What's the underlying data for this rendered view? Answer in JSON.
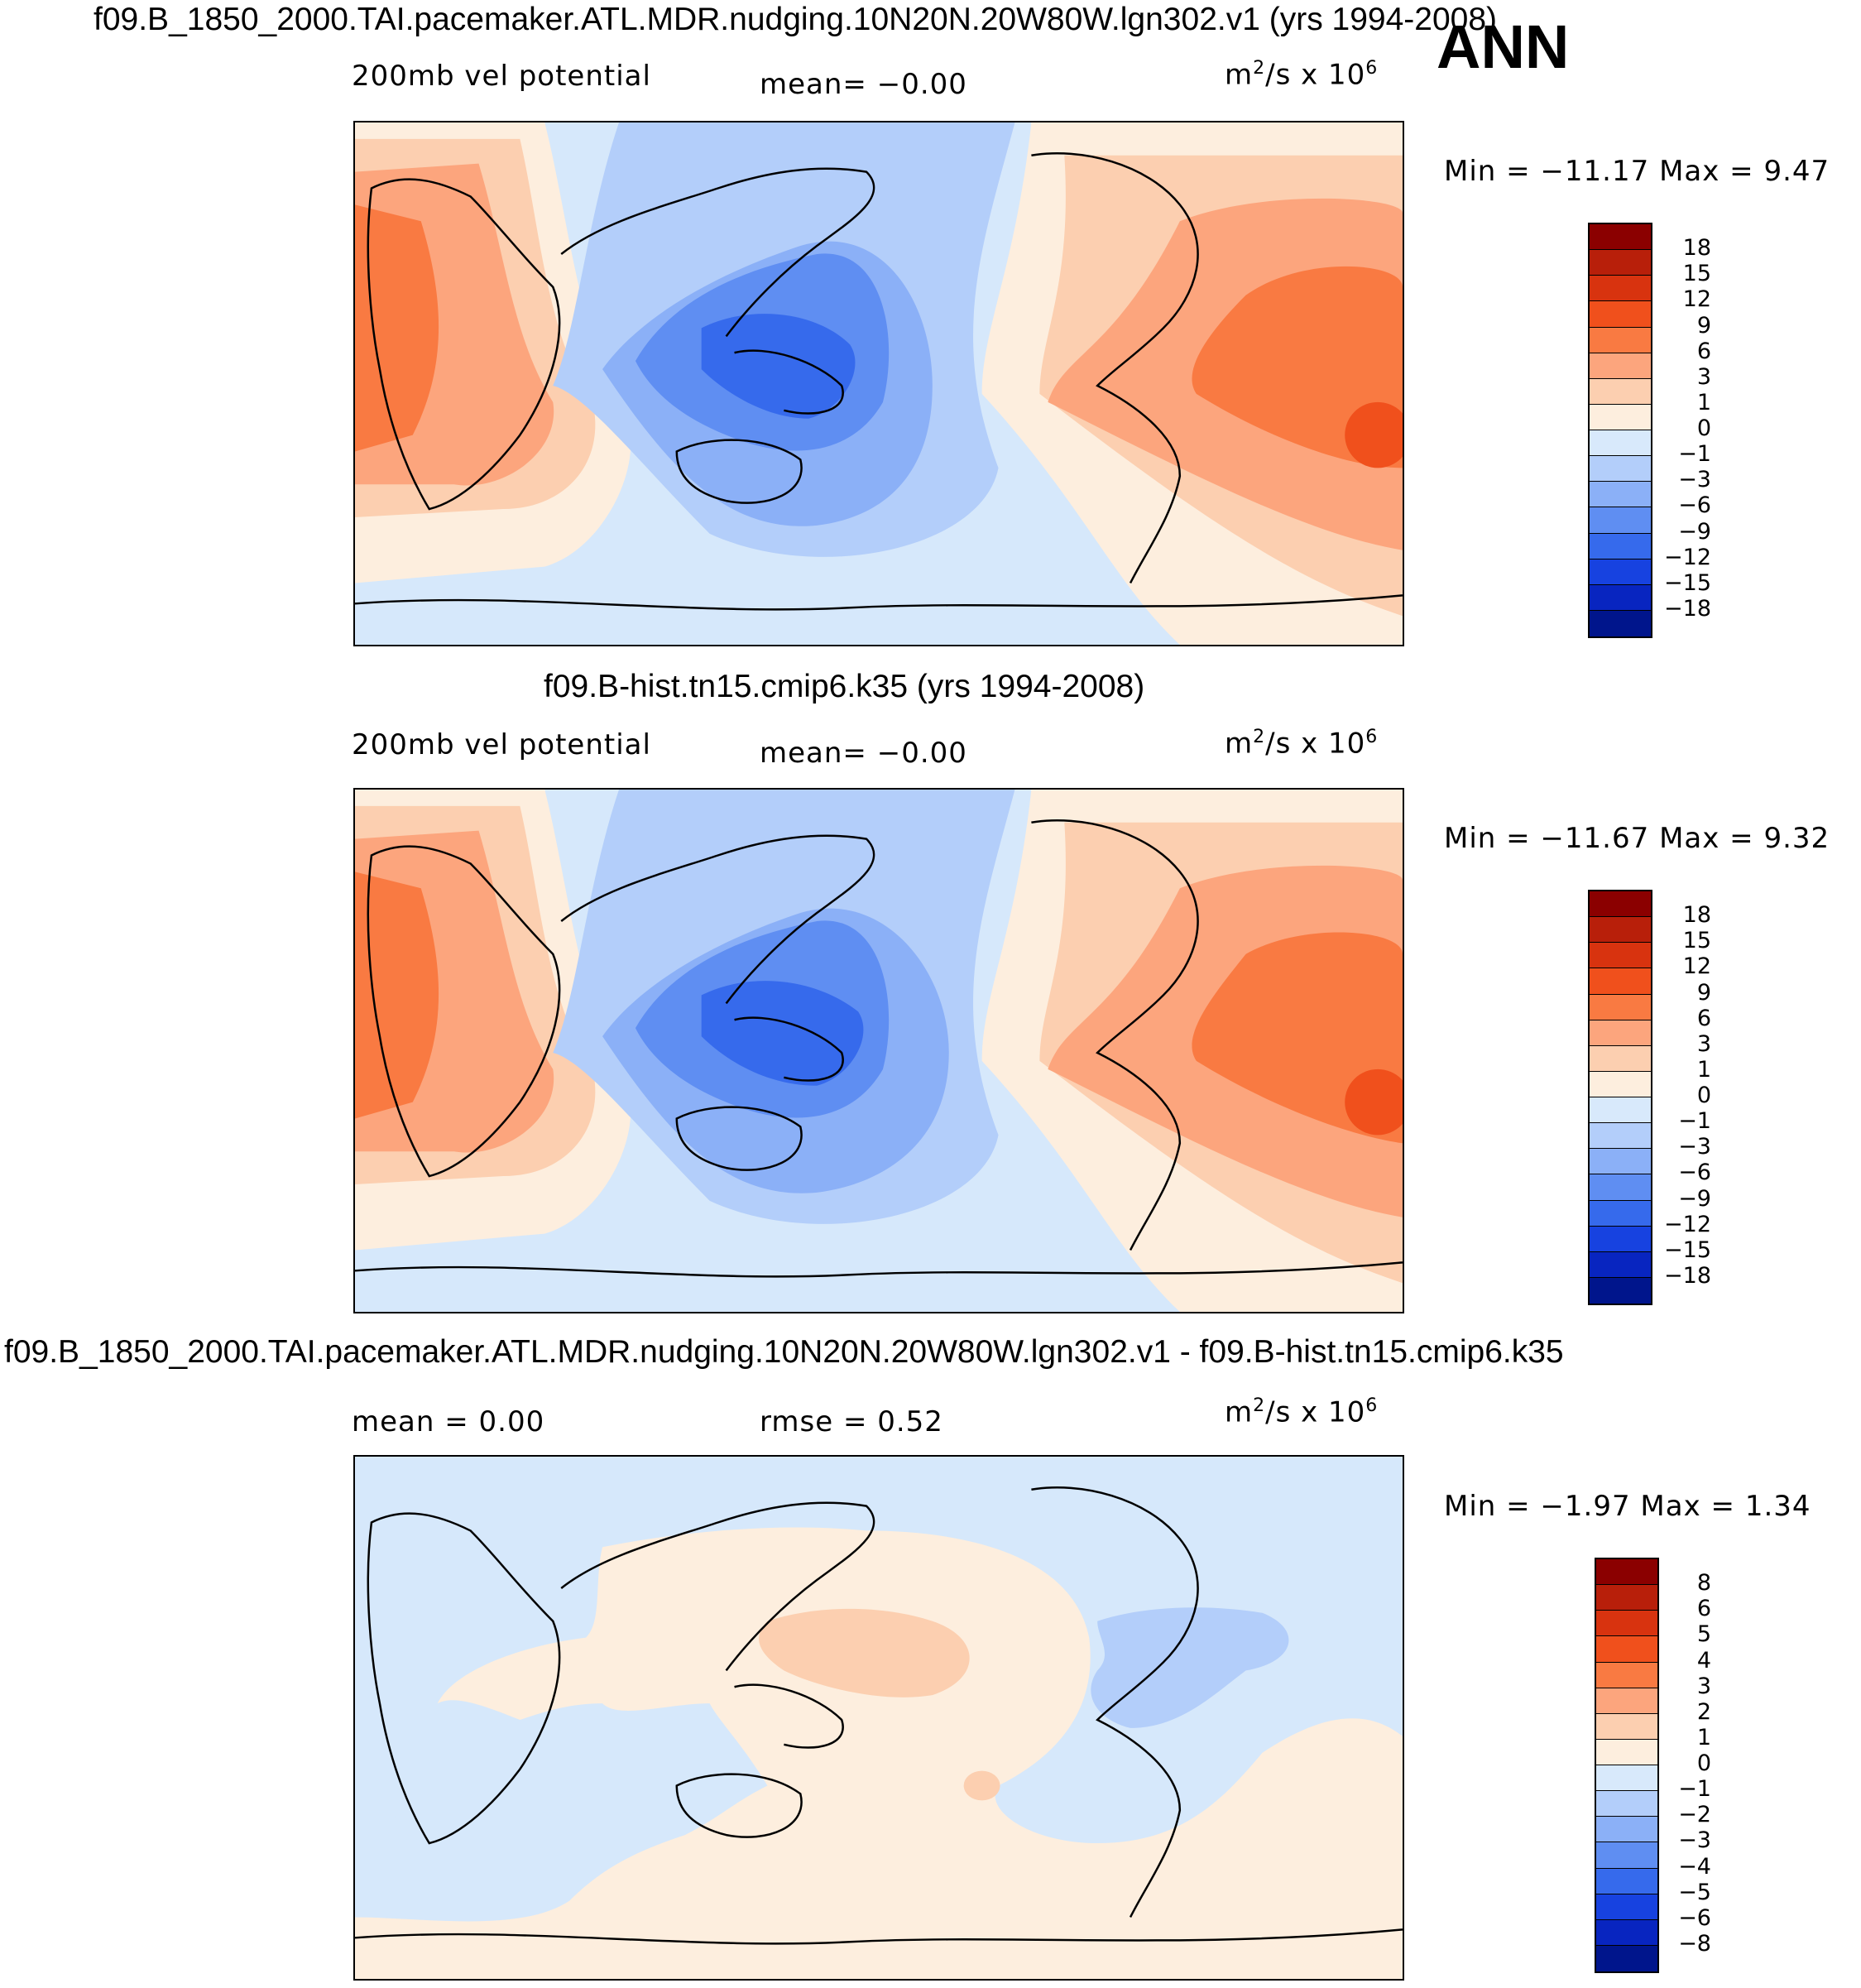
{
  "season": "ANN",
  "panels": [
    {
      "title": "f09.B_1850_2000.TAI.pacemaker.ATL.MDR.nudging.10N20N.20W80W.lgn302.v1 (yrs 1994-2008)",
      "left_label": "200mb  vel  potential",
      "center_label": "mean=   −0.00",
      "units": "m",
      "units_rest": "/s  x  10",
      "units_sup1": "2",
      "units_sup2": "6",
      "minmax": "Min  =  −11.17  Max  =     9.47"
    },
    {
      "title": "f09.B-hist.tn15.cmip6.k35 (yrs 1994-2008)",
      "left_label": "200mb  vel  potential",
      "center_label": "mean=   −0.00",
      "units": "m",
      "units_rest": "/s  x  10",
      "units_sup1": "2",
      "units_sup2": "6",
      "minmax": "Min  =  −11.67  Max  =     9.32"
    },
    {
      "title": "f09.B_1850_2000.TAI.pacemaker.ATL.MDR.nudging.10N20N.20W80W.lgn302.v1 - f09.B-hist.tn15.cmip6.k35",
      "left_label": "mean  =      0.00",
      "center_label": "rmse  =      0.52",
      "units": "m",
      "units_rest": "/s  x  10",
      "units_sup1": "2",
      "units_sup2": "6",
      "minmax": "Min  =    −1.97  Max  =     1.34"
    }
  ],
  "colorbar_main": {
    "labels": [
      "18",
      "15",
      "12",
      "9",
      "6",
      "3",
      "1",
      "0",
      "−1",
      "−3",
      "−6",
      "−9",
      "−12",
      "−15",
      "−18"
    ],
    "colors": [
      "#8b0000",
      "#b81f0a",
      "#d8330f",
      "#f0501c",
      "#f97a42",
      "#fca57d",
      "#fccfb0",
      "#fdeede",
      "#d8e9fb",
      "#b3cefa",
      "#8bb0f7",
      "#5f8ef2",
      "#366aec",
      "#1742e0",
      "#0825c0",
      "#00158c"
    ]
  },
  "colorbar_diff": {
    "labels": [
      "8",
      "6",
      "5",
      "4",
      "3",
      "2",
      "1",
      "0",
      "−1",
      "−2",
      "−3",
      "−4",
      "−5",
      "−6",
      "−8"
    ],
    "colors": [
      "#8b0000",
      "#b81f0a",
      "#d8330f",
      "#f0501c",
      "#f97a42",
      "#fca57d",
      "#fccfb0",
      "#fdeede",
      "#d8e9fb",
      "#b3cefa",
      "#8bb0f7",
      "#5f8ef2",
      "#366aec",
      "#1742e0",
      "#0825c0",
      "#00158c"
    ]
  }
}
